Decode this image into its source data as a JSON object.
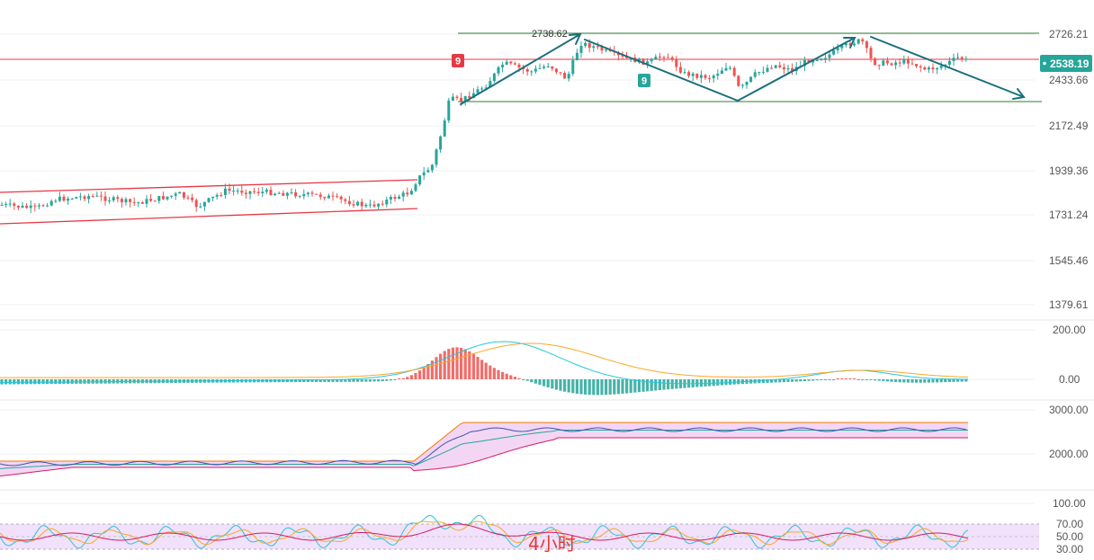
{
  "timeframe_label": "4小时",
  "chart_data": [
    {
      "type": "candlestick",
      "title": "",
      "price_axis_ticks": [
        2726.21,
        2433.66,
        2172.49,
        1939.36,
        1731.24,
        1545.46,
        1379.61
      ],
      "last_price": 2538.19,
      "high_annotation": "2738.62",
      "reference_line": 2538.19,
      "range_top": 2726.21,
      "range_bottom": 2300,
      "sequential_markers": [
        "9",
        "9"
      ],
      "series": [
        {
          "name": "",
          "color": "#26a69a",
          "role": "up"
        },
        {
          "name": "",
          "color": "#ef5350",
          "role": "down"
        }
      ]
    },
    {
      "type": "macd",
      "axis_ticks": [
        200.0,
        0.0
      ],
      "axis_tick_labels": [
        "200.00",
        "0.00"
      ]
    },
    {
      "type": "line",
      "axis_ticks": [
        3000.0,
        2000.0
      ],
      "axis_tick_labels": [
        "3000.00",
        "2000.00"
      ]
    },
    {
      "type": "line",
      "axis_ticks": [
        100.0,
        70.0,
        50.0,
        30.0
      ],
      "axis_tick_labels": [
        "100.00",
        "70.00",
        "50.00",
        "30.00"
      ]
    }
  ],
  "colors": {
    "up": "#26a69a",
    "down": "#ef5350",
    "price_tag": "#26a69a",
    "trend_arrow": "#1b6f7d",
    "channel": "#e53945",
    "range_line": "#2e7d32",
    "macd_line": "#26c6da",
    "signal_line": "#f9a825",
    "band_fill": "#f3d6f4",
    "rsi_fill": "#f1e1fb"
  }
}
